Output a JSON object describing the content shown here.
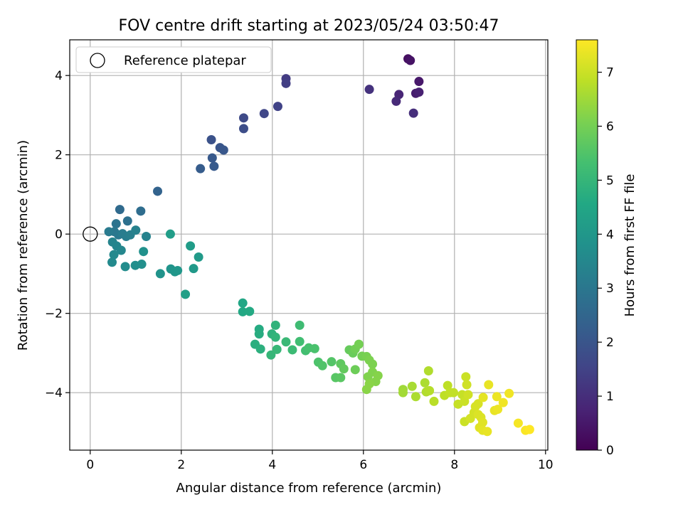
{
  "chart_data": {
    "type": "scatter",
    "title": "FOV centre drift starting at 2023/05/24 03:50:47",
    "xlabel": "Angular distance from reference (arcmin)",
    "ylabel": "Rotation from reference (arcmin)",
    "xlim": [
      -0.45,
      10.05
    ],
    "ylim": [
      -5.45,
      4.9
    ],
    "xticks": [
      0,
      2,
      4,
      6,
      8,
      10
    ],
    "yticks": [
      -4,
      -2,
      0,
      2,
      4
    ],
    "xtick_labels": [
      "0",
      "2",
      "4",
      "6",
      "8",
      "10"
    ],
    "ytick_labels": [
      "−4",
      "−2",
      "0",
      "2",
      "4"
    ],
    "grid": true,
    "legend": {
      "placement": "top-left",
      "entries": [
        "Reference platepar"
      ]
    },
    "reference_point": {
      "x": 0,
      "y": 0,
      "label": "Reference platepar"
    },
    "colorbar": {
      "label": "Hours from first FF file",
      "range": [
        0,
        7.6
      ],
      "ticks": [
        0,
        1,
        2,
        3,
        4,
        5,
        6,
        7
      ],
      "tick_labels": [
        "0",
        "1",
        "2",
        "3",
        "4",
        "5",
        "6",
        "7"
      ],
      "colormap": "viridis"
    },
    "points": [
      [
        6.98,
        4.42,
        0.3
      ],
      [
        7.03,
        4.38,
        0.4
      ],
      [
        7.22,
        3.85,
        0.5
      ],
      [
        7.15,
        3.55,
        0.6
      ],
      [
        7.22,
        3.58,
        0.7
      ],
      [
        6.78,
        3.52,
        0.8
      ],
      [
        6.72,
        3.35,
        0.9
      ],
      [
        7.1,
        3.05,
        1.0
      ],
      [
        6.13,
        3.65,
        1.1
      ],
      [
        4.3,
        3.92,
        1.3
      ],
      [
        4.3,
        3.8,
        1.4
      ],
      [
        4.12,
        3.22,
        1.5
      ],
      [
        3.82,
        3.04,
        1.6
      ],
      [
        3.37,
        2.93,
        1.7
      ],
      [
        3.37,
        2.66,
        1.8
      ],
      [
        2.66,
        2.38,
        1.9
      ],
      [
        2.85,
        2.18,
        2.0
      ],
      [
        2.93,
        2.12,
        2.05
      ],
      [
        2.68,
        1.92,
        2.1
      ],
      [
        2.72,
        1.71,
        2.15
      ],
      [
        2.42,
        1.65,
        2.2
      ],
      [
        1.48,
        1.08,
        2.4
      ],
      [
        0.65,
        0.62,
        2.6
      ],
      [
        1.11,
        0.58,
        2.7
      ],
      [
        0.82,
        0.33,
        2.8
      ],
      [
        0.57,
        0.26,
        2.9
      ],
      [
        0.53,
        0.06,
        3.0
      ],
      [
        0.62,
        -0.02,
        3.05
      ],
      [
        0.41,
        0.06,
        3.1
      ],
      [
        0.71,
        0.01,
        3.15
      ],
      [
        0.79,
        -0.06,
        3.2
      ],
      [
        0.88,
        -0.02,
        3.25
      ],
      [
        1.0,
        0.1,
        3.3
      ],
      [
        1.23,
        -0.06,
        3.35
      ],
      [
        0.49,
        -0.2,
        3.4
      ],
      [
        0.58,
        -0.3,
        3.45
      ],
      [
        0.68,
        -0.41,
        3.5
      ],
      [
        0.52,
        -0.52,
        3.55
      ],
      [
        0.48,
        -0.71,
        3.6
      ],
      [
        0.77,
        -0.82,
        3.65
      ],
      [
        0.99,
        -0.79,
        3.7
      ],
      [
        1.13,
        -0.76,
        3.75
      ],
      [
        1.17,
        -0.44,
        3.8
      ],
      [
        1.54,
        -1.0,
        3.85
      ],
      [
        1.77,
        -0.88,
        3.9
      ],
      [
        1.86,
        -0.95,
        3.95
      ],
      [
        1.92,
        -0.92,
        4.0
      ],
      [
        2.27,
        -0.87,
        4.05
      ],
      [
        2.38,
        -0.58,
        4.1
      ],
      [
        2.2,
        -0.3,
        4.15
      ],
      [
        1.76,
        0.0,
        4.2
      ],
      [
        2.09,
        -1.52,
        4.25
      ],
      [
        3.35,
        -1.74,
        4.5
      ],
      [
        3.35,
        -1.96,
        4.55
      ],
      [
        3.5,
        -1.95,
        4.6
      ],
      [
        3.71,
        -2.4,
        4.65
      ],
      [
        3.71,
        -2.52,
        4.7
      ],
      [
        3.62,
        -2.78,
        4.75
      ],
      [
        3.74,
        -2.9,
        4.8
      ],
      [
        3.99,
        -2.52,
        4.85
      ],
      [
        4.07,
        -2.3,
        4.9
      ],
      [
        4.07,
        -2.6,
        4.95
      ],
      [
        3.97,
        -3.05,
        5.0
      ],
      [
        4.1,
        -2.91,
        5.05
      ],
      [
        4.3,
        -2.72,
        5.1
      ],
      [
        4.44,
        -2.92,
        5.15
      ],
      [
        4.6,
        -2.3,
        5.2
      ],
      [
        4.6,
        -2.71,
        5.25
      ],
      [
        4.73,
        -2.94,
        5.3
      ],
      [
        4.8,
        -2.87,
        5.35
      ],
      [
        4.93,
        -2.89,
        5.4
      ],
      [
        5.01,
        -3.23,
        5.45
      ],
      [
        5.1,
        -3.32,
        5.5
      ],
      [
        5.3,
        -3.22,
        5.55
      ],
      [
        5.39,
        -3.62,
        5.6
      ],
      [
        5.5,
        -3.62,
        5.65
      ],
      [
        5.5,
        -3.27,
        5.7
      ],
      [
        5.57,
        -3.4,
        5.75
      ],
      [
        5.69,
        -2.92,
        5.8
      ],
      [
        5.77,
        -3.0,
        5.85
      ],
      [
        5.82,
        -3.42,
        5.9
      ],
      [
        5.82,
        -2.9,
        5.95
      ],
      [
        5.9,
        -2.78,
        6.0
      ],
      [
        5.97,
        -3.08,
        6.0
      ],
      [
        6.07,
        -3.09,
        6.05
      ],
      [
        6.13,
        -3.18,
        6.1
      ],
      [
        6.2,
        -3.28,
        6.1
      ],
      [
        6.2,
        -3.48,
        6.15
      ],
      [
        6.1,
        -3.6,
        6.15
      ],
      [
        6.27,
        -3.72,
        6.2
      ],
      [
        6.32,
        -3.57,
        6.2
      ],
      [
        6.07,
        -3.92,
        6.25
      ],
      [
        6.13,
        -3.78,
        6.25
      ],
      [
        6.87,
        -3.92,
        6.5
      ],
      [
        6.87,
        -4.0,
        6.55
      ],
      [
        7.07,
        -3.84,
        6.6
      ],
      [
        7.15,
        -4.1,
        6.65
      ],
      [
        7.35,
        -3.75,
        6.65
      ],
      [
        7.38,
        -3.98,
        6.7
      ],
      [
        7.43,
        -3.45,
        6.7
      ],
      [
        7.45,
        -3.95,
        6.75
      ],
      [
        7.55,
        -4.22,
        6.8
      ],
      [
        7.78,
        -4.07,
        6.85
      ],
      [
        7.85,
        -3.82,
        6.85
      ],
      [
        7.9,
        -4.0,
        6.9
      ],
      [
        7.98,
        -4.0,
        6.9
      ],
      [
        8.08,
        -4.29,
        6.95
      ],
      [
        8.17,
        -4.05,
        6.95
      ],
      [
        8.22,
        -4.22,
        7.0
      ],
      [
        8.22,
        -4.73,
        7.0
      ],
      [
        8.25,
        -3.6,
        7.0
      ],
      [
        8.27,
        -3.8,
        7.05
      ],
      [
        8.3,
        -4.05,
        7.05
      ],
      [
        8.35,
        -4.65,
        7.1
      ],
      [
        8.43,
        -4.5,
        7.1
      ],
      [
        8.46,
        -4.35,
        7.15
      ],
      [
        8.52,
        -4.28,
        7.15
      ],
      [
        8.52,
        -4.55,
        7.2
      ],
      [
        8.58,
        -4.62,
        7.2
      ],
      [
        8.55,
        -4.88,
        7.25
      ],
      [
        8.62,
        -4.75,
        7.25
      ],
      [
        8.62,
        -4.95,
        7.3
      ],
      [
        8.63,
        -4.12,
        7.3
      ],
      [
        8.72,
        -4.98,
        7.35
      ],
      [
        8.75,
        -3.8,
        7.35
      ],
      [
        8.88,
        -4.45,
        7.35
      ],
      [
        8.95,
        -4.42,
        7.4
      ],
      [
        8.93,
        -4.1,
        7.4
      ],
      [
        9.07,
        -4.25,
        7.45
      ],
      [
        9.2,
        -4.02,
        7.45
      ],
      [
        9.4,
        -4.77,
        7.5
      ],
      [
        9.56,
        -4.95,
        7.55
      ],
      [
        9.65,
        -4.93,
        7.6
      ]
    ]
  }
}
